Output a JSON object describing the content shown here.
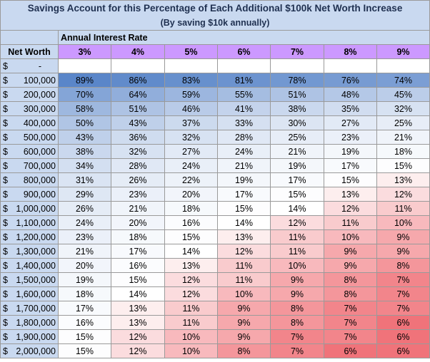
{
  "title": "Savings Account for this Percentage of Each Additional $100k Net Worth Increase",
  "subtitle": "(By saving $10k annually)",
  "rate_header": "Annual Interest Rate",
  "net_worth_header": "Net Worth",
  "rates": [
    "3%",
    "4%",
    "5%",
    "6%",
    "7%",
    "8%",
    "9%"
  ],
  "rows": [
    {
      "symbol": "$",
      "amount": "-",
      "values": [
        "",
        "",
        "",
        "",
        "",
        "",
        ""
      ]
    },
    {
      "symbol": "$",
      "amount": "100,000",
      "values": [
        "89%",
        "86%",
        "83%",
        "81%",
        "78%",
        "76%",
        "74%"
      ]
    },
    {
      "symbol": "$",
      "amount": "200,000",
      "values": [
        "70%",
        "64%",
        "59%",
        "55%",
        "51%",
        "48%",
        "45%"
      ]
    },
    {
      "symbol": "$",
      "amount": "300,000",
      "values": [
        "58%",
        "51%",
        "46%",
        "41%",
        "38%",
        "35%",
        "32%"
      ]
    },
    {
      "symbol": "$",
      "amount": "400,000",
      "values": [
        "50%",
        "43%",
        "37%",
        "33%",
        "30%",
        "27%",
        "25%"
      ]
    },
    {
      "symbol": "$",
      "amount": "500,000",
      "values": [
        "43%",
        "36%",
        "32%",
        "28%",
        "25%",
        "23%",
        "21%"
      ]
    },
    {
      "symbol": "$",
      "amount": "600,000",
      "values": [
        "38%",
        "32%",
        "27%",
        "24%",
        "21%",
        "19%",
        "18%"
      ]
    },
    {
      "symbol": "$",
      "amount": "700,000",
      "values": [
        "34%",
        "28%",
        "24%",
        "21%",
        "19%",
        "17%",
        "15%"
      ]
    },
    {
      "symbol": "$",
      "amount": "800,000",
      "values": [
        "31%",
        "26%",
        "22%",
        "19%",
        "17%",
        "15%",
        "13%"
      ]
    },
    {
      "symbol": "$",
      "amount": "900,000",
      "values": [
        "29%",
        "23%",
        "20%",
        "17%",
        "15%",
        "13%",
        "12%"
      ]
    },
    {
      "symbol": "$",
      "amount": "1,000,000",
      "values": [
        "26%",
        "21%",
        "18%",
        "15%",
        "14%",
        "12%",
        "11%"
      ]
    },
    {
      "symbol": "$",
      "amount": "1,100,000",
      "values": [
        "24%",
        "20%",
        "16%",
        "14%",
        "12%",
        "11%",
        "10%"
      ]
    },
    {
      "symbol": "$",
      "amount": "1,200,000",
      "values": [
        "23%",
        "18%",
        "15%",
        "13%",
        "11%",
        "10%",
        "9%"
      ]
    },
    {
      "symbol": "$",
      "amount": "1,300,000",
      "values": [
        "21%",
        "17%",
        "14%",
        "12%",
        "11%",
        "9%",
        "9%"
      ]
    },
    {
      "symbol": "$",
      "amount": "1,400,000",
      "values": [
        "20%",
        "16%",
        "13%",
        "11%",
        "10%",
        "9%",
        "8%"
      ]
    },
    {
      "symbol": "$",
      "amount": "1,500,000",
      "values": [
        "19%",
        "15%",
        "12%",
        "11%",
        "9%",
        "8%",
        "7%"
      ]
    },
    {
      "symbol": "$",
      "amount": "1,600,000",
      "values": [
        "18%",
        "14%",
        "12%",
        "10%",
        "9%",
        "8%",
        "7%"
      ]
    },
    {
      "symbol": "$",
      "amount": "1,700,000",
      "values": [
        "17%",
        "13%",
        "11%",
        "9%",
        "8%",
        "7%",
        "7%"
      ]
    },
    {
      "symbol": "$",
      "amount": "1,800,000",
      "values": [
        "16%",
        "13%",
        "11%",
        "9%",
        "8%",
        "7%",
        "6%"
      ]
    },
    {
      "symbol": "$",
      "amount": "1,900,000",
      "values": [
        "15%",
        "12%",
        "10%",
        "9%",
        "7%",
        "7%",
        "6%"
      ]
    },
    {
      "symbol": "$",
      "amount": "2,000,000",
      "values": [
        "15%",
        "12%",
        "10%",
        "8%",
        "7%",
        "6%",
        "6%"
      ]
    }
  ],
  "colors": {
    "label_fill": "#c9d9f0",
    "rate_header_fill": "#cc99ff",
    "scale_high": "#5a86c9",
    "scale_mid": "#ffffff",
    "scale_low": "#f0737a"
  }
}
